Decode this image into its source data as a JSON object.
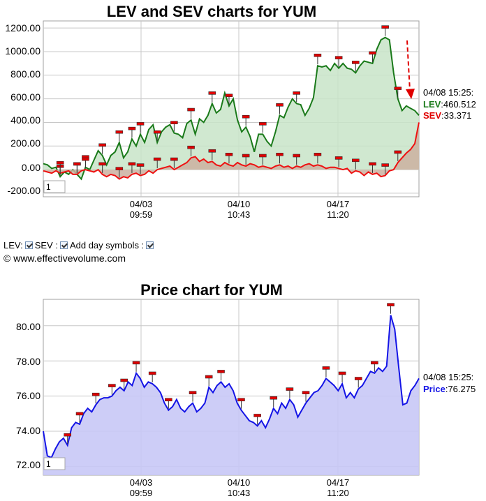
{
  "chart_data": [
    {
      "type": "area",
      "title": "LEV and SEV charts for YUM",
      "y_ticks": [
        "1200.00",
        "1000.00",
        "800.00",
        "600.00",
        "400.00",
        "200.00",
        "0.00",
        "-200.00"
      ],
      "ylim": [
        -230,
        1260
      ],
      "x_ticks": [
        {
          "date": "04/03",
          "time": "09:59"
        },
        {
          "date": "04/10",
          "time": "10:43"
        },
        {
          "date": "04/17",
          "time": "11:20"
        }
      ],
      "period_box": "1",
      "readout": {
        "timestamp": "04/08 15:25:",
        "lev_label": "LEV",
        "lev_value": "460.512",
        "sev_label": "SEV",
        "sev_value": "33.371"
      },
      "series": [
        {
          "name": "LEV",
          "color": "#1a7a1a",
          "values": [
            50,
            40,
            10,
            20,
            -60,
            -20,
            -40,
            0,
            -40,
            -80,
            20,
            0,
            80,
            160,
            120,
            40,
            120,
            150,
            230,
            100,
            150,
            260,
            200,
            300,
            230,
            340,
            380,
            230,
            320,
            360,
            380,
            310,
            300,
            270,
            390,
            420,
            300,
            430,
            400,
            460,
            560,
            480,
            510,
            650,
            540,
            600,
            420,
            320,
            360,
            280,
            150,
            300,
            300,
            240,
            200,
            320,
            460,
            440,
            530,
            600,
            560,
            550,
            460,
            520,
            610,
            880,
            870,
            880,
            840,
            900,
            860,
            900,
            860,
            850,
            820,
            880,
            920,
            910,
            900,
            1020,
            1100,
            1120,
            1100,
            820,
            600,
            500,
            540,
            520,
            500,
            460
          ]
        },
        {
          "name": "SEV",
          "color": "#ee1111",
          "values": [
            -10,
            -20,
            -30,
            -10,
            -30,
            -20,
            -10,
            -40,
            -40,
            -10,
            0,
            -10,
            -20,
            0,
            -40,
            -60,
            -40,
            -50,
            -80,
            -60,
            -70,
            -40,
            -30,
            -50,
            -40,
            -10,
            -30,
            0,
            10,
            20,
            30,
            0,
            20,
            40,
            60,
            100,
            110,
            70,
            90,
            60,
            70,
            40,
            30,
            60,
            40,
            30,
            60,
            40,
            30,
            50,
            40,
            20,
            30,
            20,
            10,
            30,
            40,
            20,
            30,
            10,
            30,
            20,
            40,
            50,
            30,
            40,
            30,
            10,
            20,
            20,
            10,
            0,
            10,
            -30,
            -10,
            -20,
            -50,
            -20,
            -40,
            -30,
            -60,
            -50,
            -10,
            0,
            60,
            100,
            140,
            170,
            220,
            400
          ]
        }
      ]
    },
    {
      "type": "area",
      "title": "Price chart for YUM",
      "y_ticks": [
        "80.00",
        "78.00",
        "76.00",
        "74.00",
        "72.00"
      ],
      "ylim": [
        71.5,
        81.5
      ],
      "x_ticks": [
        {
          "date": "04/03",
          "time": "09:59"
        },
        {
          "date": "04/10",
          "time": "10:43"
        },
        {
          "date": "04/17",
          "time": "11:20"
        }
      ],
      "period_box": "1",
      "readout": {
        "timestamp": "04/08 15:25:",
        "label": "Price",
        "value": "76.275"
      },
      "series": [
        {
          "name": "Price",
          "color": "#1414e6",
          "values": [
            74.0,
            72.6,
            72.5,
            73.0,
            73.4,
            73.6,
            73.2,
            74.2,
            74.5,
            74.4,
            75.0,
            75.3,
            75.1,
            75.5,
            75.8,
            75.9,
            75.9,
            76.0,
            76.3,
            76.5,
            76.3,
            76.8,
            76.6,
            77.3,
            77.0,
            76.5,
            76.8,
            76.7,
            76.5,
            76.2,
            75.6,
            75.2,
            75.4,
            75.8,
            75.3,
            75.1,
            75.4,
            75.6,
            75.1,
            75.3,
            75.6,
            76.5,
            76.2,
            76.6,
            76.8,
            76.5,
            76.7,
            76.3,
            75.6,
            75.2,
            74.9,
            74.6,
            74.5,
            74.3,
            74.6,
            74.2,
            74.7,
            75.3,
            75.0,
            75.6,
            75.3,
            75.8,
            75.5,
            74.8,
            75.2,
            75.6,
            75.9,
            76.2,
            76.3,
            76.6,
            77.0,
            76.8,
            76.6,
            76.3,
            76.7,
            75.9,
            76.2,
            75.9,
            76.4,
            76.6,
            77.0,
            77.4,
            77.3,
            77.6,
            77.4,
            77.7,
            80.6,
            79.8,
            77.6,
            75.5,
            75.6,
            76.3,
            76.6,
            77.0
          ]
        }
      ]
    }
  ],
  "controls": {
    "lev_label": "LEV:",
    "sev_label": "SEV :",
    "day_symbols_label": "Add day symbols :"
  },
  "copyright": "© www.effectivevolume.com",
  "colors": {
    "lev_fill": "#c8e4c8",
    "sev_fill": "#cbb0a0",
    "price_fill": "#c8c8f6",
    "grid": "#c8c8c8",
    "marker": "#e00000"
  }
}
